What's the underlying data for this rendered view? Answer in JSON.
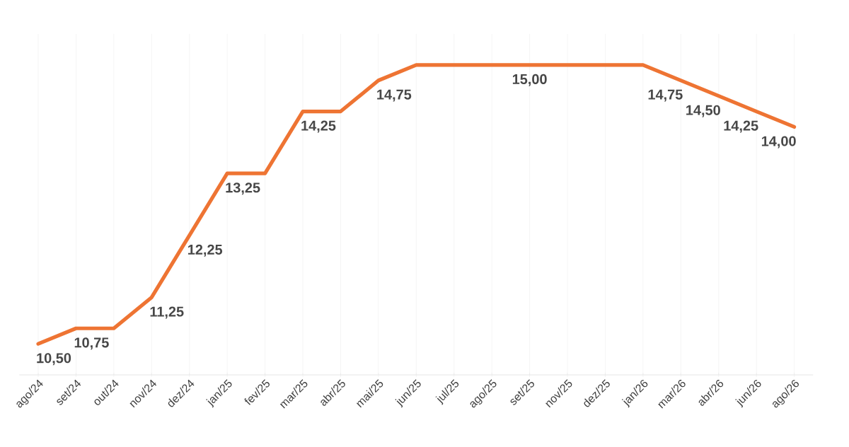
{
  "chart_data": {
    "type": "line",
    "categories": [
      "ago/24",
      "set/24",
      "out/24",
      "nov/24",
      "dez/24",
      "jan/25",
      "fev/25",
      "mar/25",
      "abr/25",
      "mai/25",
      "jun/25",
      "jul/25",
      "ago/25",
      "set/25",
      "nov/25",
      "dez/25",
      "jan/26",
      "mar/26",
      "abr/26",
      "jun/26",
      "ago/26"
    ],
    "values": [
      10.5,
      10.75,
      10.75,
      11.25,
      12.25,
      13.25,
      13.25,
      14.25,
      14.25,
      14.75,
      15.0,
      15.0,
      15.0,
      15.0,
      15.0,
      15.0,
      15.0,
      14.75,
      14.5,
      14.25,
      14.0
    ],
    "value_labels": [
      "10,50",
      "10,75",
      null,
      "11,25",
      "12,25",
      "13,25",
      null,
      "14,25",
      null,
      "14,75",
      null,
      null,
      null,
      "15,00",
      null,
      null,
      null,
      "14,75",
      "14,50",
      "14,25",
      "14,00"
    ],
    "color": "#ee7433",
    "grid": "x"
  }
}
